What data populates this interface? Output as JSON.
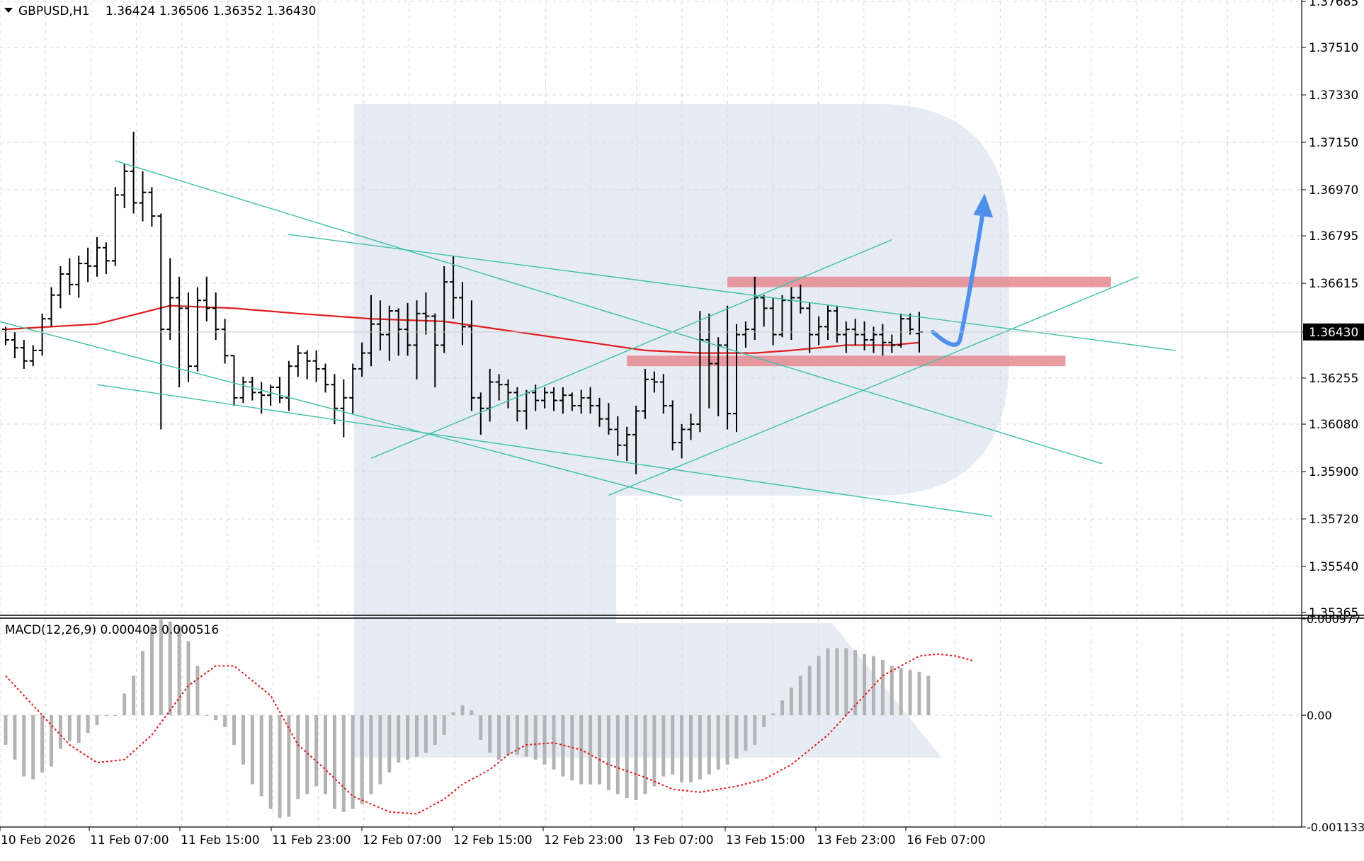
{
  "header": {
    "symbol_label": "GBPUSD,H1",
    "ohlc_label": "1.36424 1.36506 1.36352 1.36430"
  },
  "indicator": {
    "label": "MACD(12,26,9) 0.000403 0.000516"
  },
  "colors": {
    "grid": "#d9d9d9",
    "bars": "#000000",
    "ma": "#e21c1c",
    "trendlines": "#3cc0a6",
    "zones": "#e58a90",
    "arrow": "#4f90ec",
    "histogram": "#b3b3b3",
    "signal": "#e21c1c",
    "watermark": "#e7ecf4",
    "current_price_tag": "#000000"
  },
  "chart_data": [
    {
      "type": "ohlc",
      "title": "GBPUSD,H1",
      "y_ticks": [
        "1.37685",
        "1.37510",
        "1.37330",
        "1.37150",
        "1.36970",
        "1.36795",
        "1.36615",
        "1.36430",
        "1.36255",
        "1.36080",
        "1.35900",
        "1.35720",
        "1.35540",
        "1.35365"
      ],
      "current_price": "1.36430",
      "ylim": [
        1.35365,
        1.37685
      ],
      "x_labels": [
        "10 Feb 2026",
        "11 Feb 07:00",
        "11 Feb 15:00",
        "11 Feb 23:00",
        "12 Feb 07:00",
        "12 Feb 15:00",
        "12 Feb 23:00",
        "13 Feb 07:00",
        "13 Feb 15:00",
        "13 Feb 23:00",
        "16 Feb 07:00"
      ],
      "bars": [
        [
          1.3644,
          1.3645,
          1.3638,
          1.364
        ],
        [
          1.364,
          1.3643,
          1.3633,
          1.3637
        ],
        [
          1.3637,
          1.364,
          1.3629,
          1.3632
        ],
        [
          1.3632,
          1.3638,
          1.363,
          1.3636
        ],
        [
          1.3636,
          1.365,
          1.3634,
          1.3648
        ],
        [
          1.3648,
          1.366,
          1.3645,
          1.3657
        ],
        [
          1.3657,
          1.3668,
          1.3652,
          1.3665
        ],
        [
          1.3665,
          1.3671,
          1.3657,
          1.3661
        ],
        [
          1.3661,
          1.3672,
          1.3656,
          1.3669
        ],
        [
          1.3669,
          1.3675,
          1.3662,
          1.3668
        ],
        [
          1.3668,
          1.3679,
          1.3664,
          1.3675
        ],
        [
          1.3675,
          1.3677,
          1.3665,
          1.367
        ],
        [
          1.367,
          1.3698,
          1.3668,
          1.3695
        ],
        [
          1.3695,
          1.3707,
          1.369,
          1.3704
        ],
        [
          1.3704,
          1.3719,
          1.3688,
          1.3692
        ],
        [
          1.3692,
          1.3704,
          1.3685,
          1.3696
        ],
        [
          1.3696,
          1.3698,
          1.3683,
          1.3687
        ],
        [
          1.3687,
          1.3688,
          1.3606,
          1.3644
        ],
        [
          1.3644,
          1.3671,
          1.364,
          1.3656
        ],
        [
          1.3656,
          1.3664,
          1.3622,
          1.3652
        ],
        [
          1.3652,
          1.3658,
          1.3624,
          1.363
        ],
        [
          1.363,
          1.366,
          1.3628,
          1.3655
        ],
        [
          1.3655,
          1.3664,
          1.3647,
          1.3652
        ],
        [
          1.3652,
          1.3658,
          1.364,
          1.3644
        ],
        [
          1.3644,
          1.3648,
          1.3631,
          1.3634
        ],
        [
          1.3634,
          1.3634,
          1.3615,
          1.3618
        ],
        [
          1.3618,
          1.3626,
          1.3616,
          1.3624
        ],
        [
          1.3624,
          1.3626,
          1.3617,
          1.362
        ],
        [
          1.362,
          1.3624,
          1.3612,
          1.3619
        ],
        [
          1.3619,
          1.3623,
          1.3615,
          1.3622
        ],
        [
          1.3622,
          1.3626,
          1.3616,
          1.3618
        ],
        [
          1.3618,
          1.3632,
          1.3613,
          1.363
        ],
        [
          1.363,
          1.3638,
          1.3626,
          1.3635
        ],
        [
          1.3635,
          1.3636,
          1.3625,
          1.3632
        ],
        [
          1.3632,
          1.3636,
          1.3624,
          1.3629
        ],
        [
          1.3629,
          1.3631,
          1.362,
          1.3623
        ],
        [
          1.3623,
          1.3627,
          1.3608,
          1.3614
        ],
        [
          1.3614,
          1.3625,
          1.3603,
          1.3618
        ],
        [
          1.3618,
          1.3631,
          1.3612,
          1.3629
        ],
        [
          1.3629,
          1.3639,
          1.3626,
          1.3635
        ],
        [
          1.3635,
          1.3657,
          1.363,
          1.3646
        ],
        [
          1.3646,
          1.3655,
          1.3636,
          1.3642
        ],
        [
          1.3642,
          1.3653,
          1.3632,
          1.3651
        ],
        [
          1.3651,
          1.3652,
          1.3634,
          1.3644
        ],
        [
          1.3644,
          1.3654,
          1.3634,
          1.3638
        ],
        [
          1.3638,
          1.3655,
          1.3625,
          1.365
        ],
        [
          1.365,
          1.3658,
          1.3642,
          1.3649
        ],
        [
          1.3649,
          1.365,
          1.3622,
          1.3638
        ],
        [
          1.3638,
          1.3668,
          1.3635,
          1.3662
        ],
        [
          1.3662,
          1.3672,
          1.3648,
          1.3656
        ],
        [
          1.3656,
          1.3662,
          1.3638,
          1.3645
        ],
        [
          1.3645,
          1.3655,
          1.3613,
          1.3618
        ],
        [
          1.3618,
          1.362,
          1.3604,
          1.3614
        ],
        [
          1.3614,
          1.3629,
          1.3609,
          1.3624
        ],
        [
          1.3624,
          1.3627,
          1.3617,
          1.3623
        ],
        [
          1.3623,
          1.3625,
          1.3614,
          1.362
        ],
        [
          1.362,
          1.3622,
          1.3609,
          1.3613
        ],
        [
          1.3613,
          1.3621,
          1.3606,
          1.362
        ],
        [
          1.362,
          1.3623,
          1.3613,
          1.3617
        ],
        [
          1.3617,
          1.3622,
          1.3614,
          1.362
        ],
        [
          1.362,
          1.3622,
          1.3613,
          1.3617
        ],
        [
          1.3617,
          1.3622,
          1.3612,
          1.3619
        ],
        [
          1.3619,
          1.362,
          1.3613,
          1.3615
        ],
        [
          1.3615,
          1.3621,
          1.3612,
          1.3618
        ],
        [
          1.3618,
          1.3622,
          1.3612,
          1.3615
        ],
        [
          1.3615,
          1.3618,
          1.3607,
          1.361
        ],
        [
          1.361,
          1.3616,
          1.3604,
          1.3606
        ],
        [
          1.3606,
          1.3611,
          1.3596,
          1.36
        ],
        [
          1.36,
          1.3607,
          1.3594,
          1.3604
        ],
        [
          1.3604,
          1.3615,
          1.3589,
          1.3613
        ],
        [
          1.3613,
          1.3629,
          1.361,
          1.3625
        ],
        [
          1.3625,
          1.3628,
          1.362,
          1.3624
        ],
        [
          1.3624,
          1.3627,
          1.3612,
          1.3615
        ],
        [
          1.3615,
          1.3617,
          1.3598,
          1.3601
        ],
        [
          1.3601,
          1.3608,
          1.3595,
          1.3606
        ],
        [
          1.3606,
          1.3612,
          1.3602,
          1.3608
        ],
        [
          1.3608,
          1.3651,
          1.3605,
          1.364
        ],
        [
          1.364,
          1.365,
          1.3614,
          1.3631
        ],
        [
          1.3631,
          1.3641,
          1.3611,
          1.3638
        ],
        [
          1.3638,
          1.3653,
          1.3606,
          1.3612
        ],
        [
          1.3612,
          1.3646,
          1.3605,
          1.3642
        ],
        [
          1.3642,
          1.3647,
          1.3637,
          1.3644
        ],
        [
          1.3644,
          1.3664,
          1.364,
          1.3656
        ],
        [
          1.3656,
          1.3657,
          1.3645,
          1.3652
        ],
        [
          1.3652,
          1.3656,
          1.3638,
          1.3642
        ],
        [
          1.3642,
          1.3657,
          1.3641,
          1.3655
        ],
        [
          1.3655,
          1.366,
          1.364,
          1.3656
        ],
        [
          1.3656,
          1.3661,
          1.365,
          1.3652
        ],
        [
          1.3652,
          1.3654,
          1.3635,
          1.3642
        ],
        [
          1.3642,
          1.3649,
          1.3638,
          1.3645
        ],
        [
          1.3645,
          1.3653,
          1.364,
          1.3651
        ],
        [
          1.3651,
          1.3653,
          1.3639,
          1.3642
        ],
        [
          1.3642,
          1.3647,
          1.3635,
          1.3644
        ],
        [
          1.3644,
          1.3648,
          1.3638,
          1.3642
        ],
        [
          1.3642,
          1.3647,
          1.3636,
          1.364
        ],
        [
          1.364,
          1.3645,
          1.3635,
          1.3642
        ],
        [
          1.3642,
          1.3646,
          1.3634,
          1.3639
        ],
        [
          1.3639,
          1.3642,
          1.3635,
          1.3638
        ],
        [
          1.3638,
          1.365,
          1.3637,
          1.3648
        ],
        [
          1.3648,
          1.365,
          1.3642,
          1.3644
        ],
        [
          1.36424,
          1.36506,
          1.36352,
          1.3643
        ]
      ],
      "ma": [
        [
          0,
          1.3644
        ],
        [
          10,
          1.3646
        ],
        [
          18,
          1.3653
        ],
        [
          25,
          1.3652
        ],
        [
          32,
          1.365
        ],
        [
          40,
          1.3648
        ],
        [
          48,
          1.3647
        ],
        [
          52,
          1.3645
        ],
        [
          58,
          1.3642
        ],
        [
          64,
          1.3639
        ],
        [
          70,
          1.3636
        ],
        [
          76,
          1.3635
        ],
        [
          82,
          1.3635
        ],
        [
          86,
          1.3636
        ],
        [
          92,
          1.3638
        ],
        [
          97,
          1.3638
        ],
        [
          100,
          1.3639
        ]
      ],
      "trendlines": [
        {
          "from": [
            -4,
            1.365
          ],
          "to": [
            74,
            1.3579
          ]
        },
        {
          "from": [
            12,
            1.3708
          ],
          "to": [
            120,
            1.3593
          ]
        },
        {
          "from": [
            31,
            1.368
          ],
          "to": [
            128,
            1.3636
          ]
        },
        {
          "from": [
            10,
            1.3623
          ],
          "to": [
            108,
            1.3573
          ]
        },
        {
          "from": [
            40,
            1.3595
          ],
          "to": [
            97,
            1.3678
          ]
        },
        {
          "from": [
            66,
            1.3581
          ],
          "to": [
            124,
            1.3664
          ]
        }
      ],
      "zones": [
        {
          "from": 79,
          "to": 121,
          "low": 1.366,
          "high": 1.3664
        },
        {
          "from": 68,
          "to": 116,
          "low": 1.363,
          "high": 1.3634
        }
      ],
      "arrow": [
        [
          101.5,
          1.3643
        ],
        [
          104,
          1.364
        ],
        [
          105.5,
          1.3657
        ],
        [
          107,
          1.3695
        ]
      ]
    },
    {
      "type": "bar",
      "title": "MACD(12,26,9) 0.000403 0.000516",
      "y_ticks": [
        "0.000977",
        "0.00",
        "-0.001133"
      ],
      "ylim": [
        -0.001133,
        0.000977
      ],
      "histogram": [
        -0.0003,
        -0.00045,
        -0.00062,
        -0.00065,
        -0.00058,
        -0.00052,
        -0.00034,
        -0.00026,
        -0.00028,
        -0.00018,
        -0.0001,
        0.0,
        0.0,
        0.00022,
        0.0004,
        0.00065,
        0.0009,
        0.00097,
        0.00095,
        0.00091,
        0.00075,
        0.0005,
        0.0,
        -5e-05,
        -0.00012,
        -0.0003,
        -0.0005,
        -0.0007,
        -0.00082,
        -0.00095,
        -0.00104,
        -0.00103,
        -0.00085,
        -0.0008,
        -0.00072,
        -0.0008,
        -0.00095,
        -0.00098,
        -0.00095,
        -0.0009,
        -0.0008,
        -0.0007,
        -0.00058,
        -0.00048,
        -0.00045,
        -0.00042,
        -0.00038,
        -0.0003,
        -0.0002,
        3e-05,
        0.0001,
        5e-05,
        -0.00025,
        -0.00038,
        -0.00045,
        -0.0004,
        -0.0004,
        -0.00042,
        -0.00045,
        -0.0005,
        -0.00055,
        -0.00062,
        -0.00066,
        -0.0007,
        -0.0007,
        -0.0007,
        -0.00076,
        -0.0008,
        -0.00084,
        -0.00086,
        -0.0008,
        -0.00072,
        -0.00062,
        -0.0006,
        -0.00068,
        -0.00068,
        -0.00065,
        -0.0006,
        -0.00055,
        -0.0005,
        -0.00044,
        -0.00036,
        -0.0003,
        -0.00012,
        2e-05,
        0.00015,
        0.00028,
        0.0004,
        0.0005,
        0.0006,
        0.00068,
        0.00068,
        0.00068,
        0.00066,
        0.00062,
        0.0006,
        0.00056,
        0.0005,
        0.00048,
        0.00046,
        0.00044,
        0.0004
      ],
      "signal": [
        [
          0,
          0.0004
        ],
        [
          4,
          0.0
        ],
        [
          7,
          -0.0003
        ],
        [
          10,
          -0.00048
        ],
        [
          13,
          -0.00045
        ],
        [
          16,
          -0.0002
        ],
        [
          20,
          0.0003
        ],
        [
          23,
          0.0005
        ],
        [
          25,
          0.0005
        ],
        [
          29,
          0.0002
        ],
        [
          32,
          -0.0003
        ],
        [
          35,
          -0.00055
        ],
        [
          38,
          -0.00082
        ],
        [
          42,
          -0.00098
        ],
        [
          45,
          -0.001
        ],
        [
          48,
          -0.00085
        ],
        [
          50,
          -0.0007
        ],
        [
          53,
          -0.00055
        ],
        [
          55,
          -0.0004
        ],
        [
          57,
          -0.0003
        ],
        [
          60,
          -0.00028
        ],
        [
          63,
          -0.00035
        ],
        [
          66,
          -0.0005
        ],
        [
          70,
          -0.00063
        ],
        [
          73,
          -0.00075
        ],
        [
          76,
          -0.00078
        ],
        [
          80,
          -0.00072
        ],
        [
          83,
          -0.00065
        ],
        [
          86,
          -0.0005
        ],
        [
          90,
          -0.0002
        ],
        [
          93,
          0.0001
        ],
        [
          96,
          0.0004
        ],
        [
          100,
          0.0006
        ],
        [
          102,
          0.00062
        ],
        [
          104,
          0.0006
        ],
        [
          106,
          0.00055
        ]
      ]
    }
  ]
}
